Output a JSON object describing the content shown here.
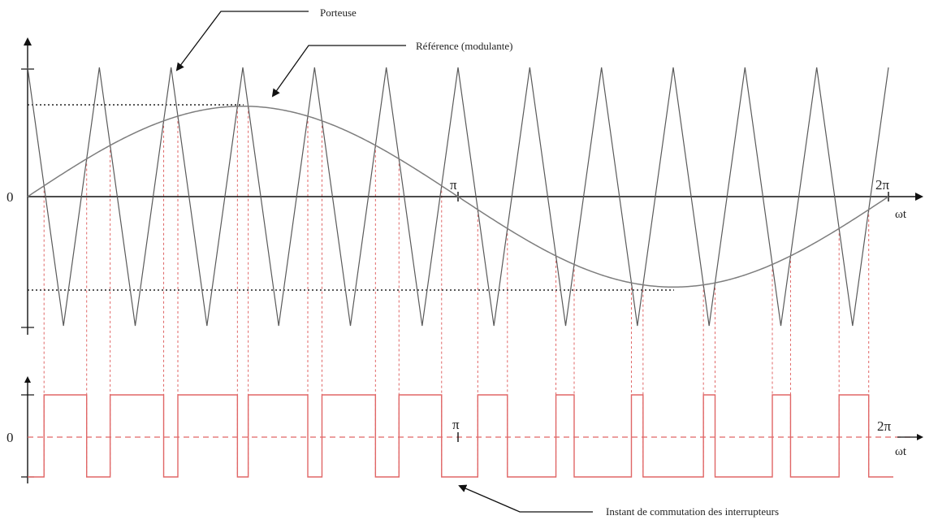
{
  "annotations": {
    "carrier": "Porteuse",
    "reference": "Référence (modulante)",
    "switching": "Instant de commutation des interrupteurs"
  },
  "top_axis": {
    "origin_label": "0",
    "pi_label": "π",
    "two_pi_label": "2π",
    "x_label": "ωt"
  },
  "bottom_axis": {
    "origin_label": "0",
    "pi_label": "π",
    "two_pi_label": "2π",
    "x_label": "ωt"
  },
  "chart_data": {
    "type": "line",
    "x_range": [
      0,
      6.2832
    ],
    "y_range": [
      -1,
      1
    ],
    "carrier": {
      "waveform": "triangle",
      "periods_per_cycle": 12,
      "amplitude": 1,
      "starts_at": 1
    },
    "reference": {
      "waveform": "sine",
      "amplitude": 0.7
    },
    "pwm_output": {
      "levels": [
        -1,
        1
      ]
    },
    "colors": {
      "carrier": "#5a5a5a",
      "reference": "#7d7d7d",
      "pwm": "#e06666",
      "projection": "#e06666",
      "axes": "#111111"
    }
  }
}
